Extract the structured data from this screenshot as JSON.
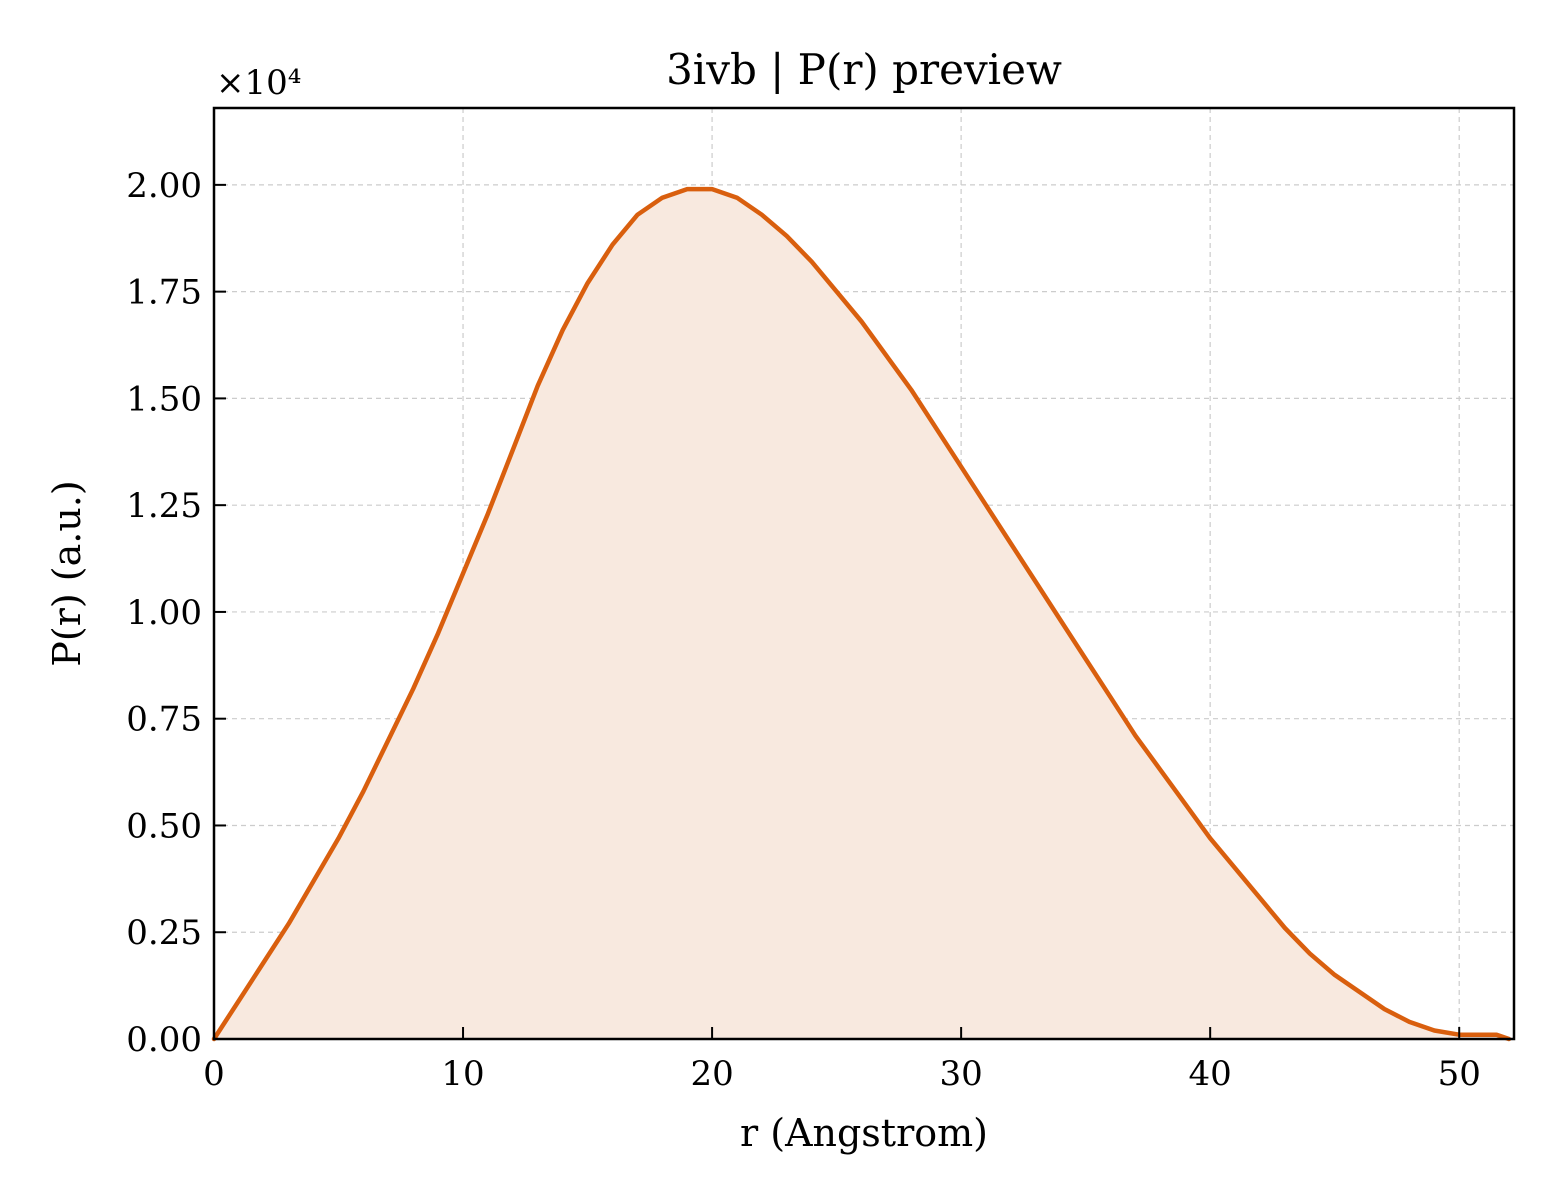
{
  "chart_data": {
    "type": "area",
    "title": "3ivb | P(r) preview",
    "xlabel": "r (Angstrom)",
    "ylabel": "P(r) (a.u.)",
    "y_offset_label": "×10⁴",
    "xlim": [
      0,
      52.2
    ],
    "ylim": [
      0,
      2.18
    ],
    "xticks": [
      0,
      10,
      20,
      30,
      40,
      50
    ],
    "xtick_labels": [
      "0",
      "10",
      "20",
      "30",
      "40",
      "50"
    ],
    "yticks": [
      0,
      0.25,
      0.5,
      0.75,
      1.0,
      1.25,
      1.5,
      1.75,
      2.0
    ],
    "ytick_labels": [
      "0.00",
      "0.25",
      "0.50",
      "0.75",
      "1.00",
      "1.25",
      "1.50",
      "1.75",
      "2.00"
    ],
    "grid": true,
    "series": [
      {
        "color": "#d95f0e",
        "fill_color": "#f8e9df",
        "x": [
          0,
          1,
          2,
          3,
          4,
          5,
          6,
          7,
          8,
          9,
          10,
          11,
          12,
          13,
          14,
          15,
          16,
          17,
          18,
          19,
          20,
          21,
          22,
          23,
          24,
          25,
          26,
          27,
          28,
          29,
          30,
          31,
          32,
          33,
          34,
          35,
          36,
          37,
          38,
          39,
          40,
          41,
          42,
          43,
          44,
          45,
          46,
          47,
          48,
          49,
          50,
          51,
          51.5,
          52
        ],
        "y": [
          0.0,
          0.09,
          0.18,
          0.27,
          0.37,
          0.47,
          0.58,
          0.7,
          0.82,
          0.95,
          1.09,
          1.23,
          1.38,
          1.53,
          1.66,
          1.77,
          1.86,
          1.93,
          1.97,
          1.99,
          1.99,
          1.97,
          1.93,
          1.88,
          1.82,
          1.75,
          1.68,
          1.6,
          1.52,
          1.43,
          1.34,
          1.25,
          1.16,
          1.07,
          0.98,
          0.89,
          0.8,
          0.71,
          0.63,
          0.55,
          0.47,
          0.4,
          0.33,
          0.26,
          0.2,
          0.15,
          0.11,
          0.07,
          0.04,
          0.02,
          0.01,
          0.01,
          0.01,
          0.0
        ]
      }
    ]
  }
}
